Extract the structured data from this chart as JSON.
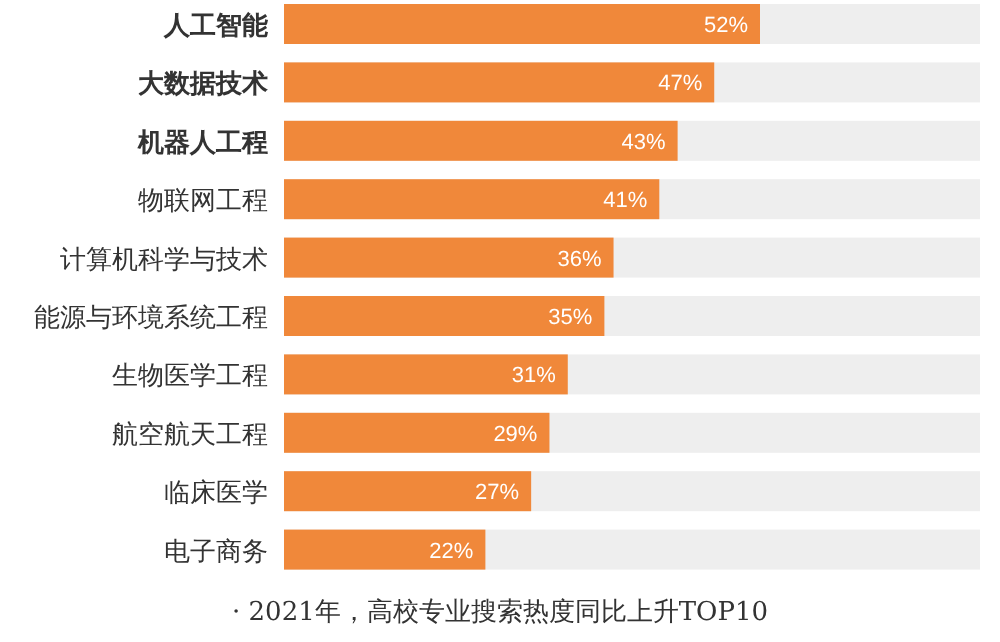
{
  "chart_data": {
    "type": "bar",
    "orientation": "horizontal",
    "color": "#f0883a",
    "categories": [
      "人工智能",
      "大数据技术",
      "机器人工程",
      "物联网工程",
      "计算机科学与技术",
      "能源与环境系统工程",
      "生物医学工程",
      "航空航天工程",
      "临床医学",
      "电子商务"
    ],
    "values": [
      52,
      47,
      43,
      41,
      36,
      35,
      31,
      29,
      27,
      22
    ],
    "value_labels": [
      "52%",
      "47%",
      "43%",
      "41%",
      "36%",
      "35%",
      "31%",
      "29%",
      "27%",
      "22%"
    ],
    "annotations": [
      "· 2021年，高校专业搜索热度同比上升TOP10"
    ]
  }
}
